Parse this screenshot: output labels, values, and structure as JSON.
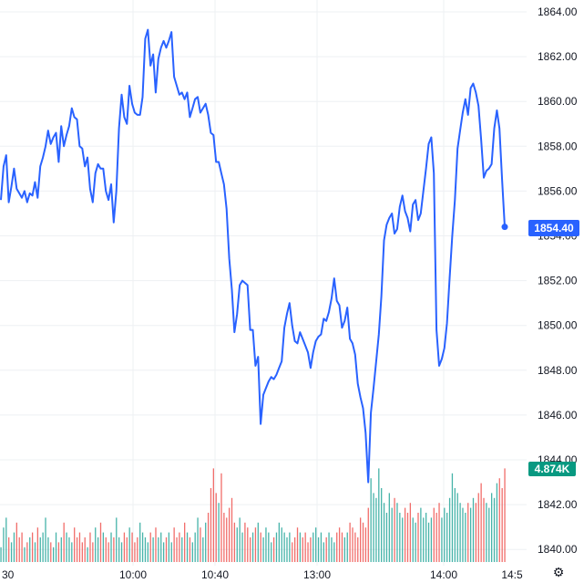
{
  "chart_data": {
    "type": "line",
    "title": "",
    "xlabel": "",
    "ylabel": "",
    "ylim": [
      1839.4,
      1864.9
    ],
    "y_ticks": [
      "1840.00",
      "1842.00",
      "1844.00",
      "1846.00",
      "1848.00",
      "1850.00",
      "1852.00",
      "1854.00",
      "1856.00",
      "1858.00",
      "1860.00",
      "1862.00",
      "1864.00"
    ],
    "x_ticks": [
      "30",
      "10:00",
      "10:40",
      "13:00",
      "14:00",
      "14:5"
    ],
    "grid": true,
    "last_price": "1854.40",
    "volume_label": "4.874K",
    "colors": {
      "line": "#2962ff",
      "up": "#26a69a",
      "down": "#ef5350",
      "volume_badge": "#089981"
    },
    "series": [
      {
        "values": [
          1855.6,
          1857.1,
          1857.6,
          1855.5,
          1856.2,
          1857.0,
          1856.1,
          1855.9,
          1855.7,
          1856.0,
          1855.5,
          1855.9,
          1855.8,
          1856.4,
          1855.7,
          1857.1,
          1857.5,
          1858.0,
          1858.7,
          1858.1,
          1858.4,
          1858.6,
          1857.3,
          1858.9,
          1858.0,
          1858.5,
          1858.9,
          1859.7,
          1859.3,
          1859.2,
          1858.0,
          1857.9,
          1857.1,
          1857.5,
          1856.1,
          1855.5,
          1856.8,
          1857.2,
          1857.0,
          1857.0,
          1856.0,
          1855.6,
          1856.3,
          1854.6,
          1856.0,
          1858.8,
          1860.3,
          1859.3,
          1859.0,
          1860.7,
          1859.9,
          1859.5,
          1859.4,
          1859.4,
          1860.2,
          1862.8,
          1863.2,
          1861.6,
          1862.1,
          1860.4,
          1861.9,
          1862.4,
          1862.7,
          1862.4,
          1862.7,
          1863.1,
          1861.1,
          1860.7,
          1860.3,
          1860.4,
          1860.1,
          1860.4,
          1859.3,
          1859.7,
          1860.1,
          1860.2,
          1859.5,
          1859.7,
          1859.9,
          1859.4,
          1858.6,
          1858.5,
          1857.3,
          1857.3,
          1856.8,
          1856.3,
          1855.2,
          1853.0,
          1851.6,
          1849.7,
          1850.5,
          1851.8,
          1852.0,
          1851.9,
          1851.8,
          1849.8,
          1849.8,
          1848.2,
          1848.6,
          1845.6,
          1846.9,
          1847.2,
          1847.5,
          1847.7,
          1847.6,
          1847.8,
          1848.1,
          1848.4,
          1849.9,
          1850.5,
          1851.0,
          1850.0,
          1849.3,
          1849.2,
          1849.7,
          1849.4,
          1849.1,
          1848.8,
          1848.1,
          1848.8,
          1849.3,
          1849.5,
          1849.6,
          1850.3,
          1850.2,
          1850.6,
          1851.2,
          1852.1,
          1851.1,
          1850.9,
          1849.9,
          1850.2,
          1850.8,
          1849.4,
          1849.2,
          1848.7,
          1847.4,
          1846.8,
          1846.3,
          1845.2,
          1843.0,
          1846.1,
          1847.2,
          1848.4,
          1849.6,
          1851.3,
          1853.8,
          1854.5,
          1854.8,
          1855.0,
          1854.1,
          1854.3,
          1855.3,
          1855.8,
          1855.1,
          1854.8,
          1854.2,
          1855.4,
          1855.6,
          1854.7,
          1855.0,
          1856.0,
          1857.0,
          1858.1,
          1858.4,
          1856.8,
          1849.8,
          1848.2,
          1848.5,
          1849.0,
          1850.1,
          1852.1,
          1854.0,
          1855.6,
          1857.9,
          1858.7,
          1859.5,
          1860.1,
          1859.4,
          1860.6,
          1860.8,
          1860.4,
          1859.8,
          1858.3,
          1856.6,
          1856.9,
          1857.0,
          1857.2,
          1858.8,
          1859.6,
          1858.8,
          1856.5,
          1854.4
        ]
      },
      {
        "name": "Volume",
        "values": [
          3,
          7,
          9,
          5,
          4,
          6,
          8,
          5,
          6,
          3,
          4,
          5,
          6,
          4,
          7,
          5,
          6,
          9,
          5,
          4,
          3,
          6,
          4,
          5,
          8,
          6,
          5,
          4,
          7,
          5,
          6,
          4,
          5,
          3,
          6,
          4,
          7,
          5,
          8,
          6,
          5,
          4,
          6,
          5,
          9,
          5,
          4,
          6,
          5,
          7,
          6,
          4,
          5,
          8,
          6,
          5,
          4,
          6,
          5,
          7,
          5,
          6,
          4,
          5,
          6,
          4,
          7,
          5,
          6,
          5,
          8,
          6,
          5,
          4,
          6,
          9,
          7,
          5,
          8,
          10,
          15,
          19,
          14,
          12,
          18,
          10,
          9,
          11,
          13,
          8,
          7,
          9,
          6,
          8,
          7,
          5,
          6,
          7,
          8,
          6,
          5,
          7,
          6,
          4,
          5,
          6,
          8,
          7,
          6,
          5,
          6,
          4,
          5,
          7,
          6,
          5,
          6,
          4,
          5,
          6,
          7,
          5,
          6,
          4,
          5,
          6,
          5,
          4,
          6,
          7,
          6,
          5,
          6,
          8,
          7,
          6,
          5,
          9,
          8,
          7,
          11,
          17,
          14,
          13,
          19,
          15,
          12,
          10,
          14,
          11,
          13,
          12,
          10,
          9,
          11,
          10,
          12,
          9,
          8,
          10,
          11,
          9,
          10,
          8,
          9,
          11,
          10,
          12,
          9,
          11,
          10,
          13,
          18,
          15,
          14,
          12,
          11,
          10,
          12,
          11,
          13,
          12,
          14,
          16,
          13,
          12,
          11,
          14,
          13,
          16,
          17,
          15,
          19
        ]
      }
    ]
  }
}
